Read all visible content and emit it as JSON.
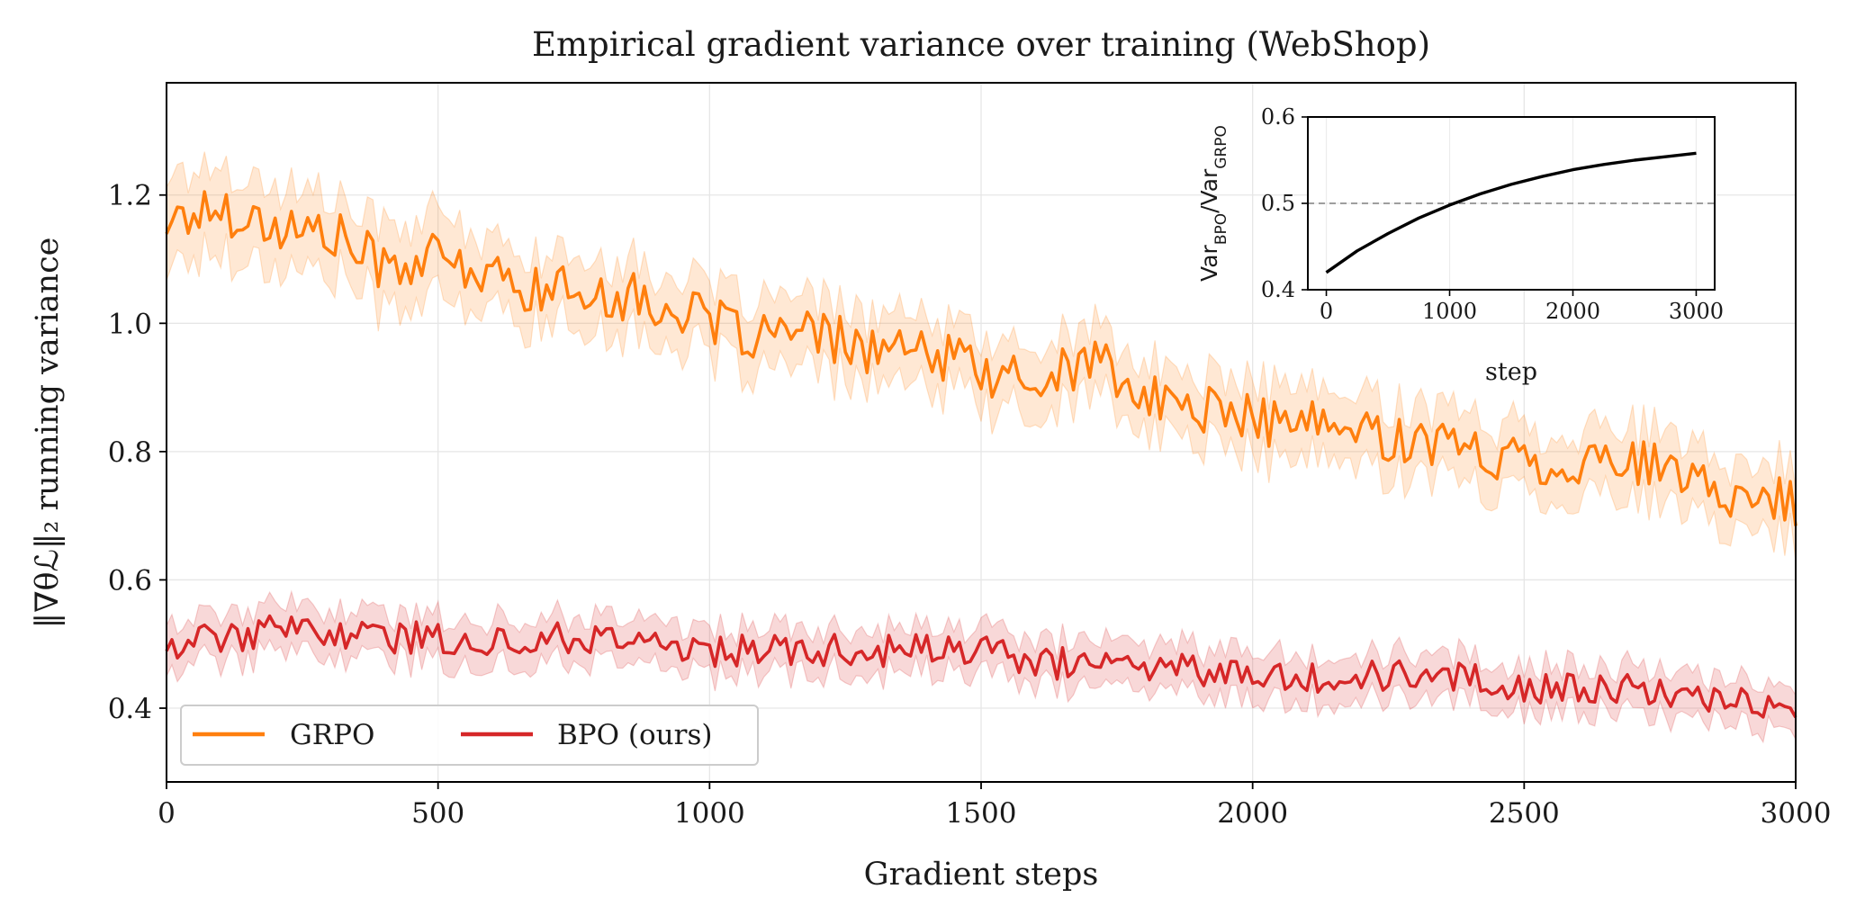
{
  "chart_data": [
    {
      "type": "line",
      "title": "Empirical gradient variance over training (WebShop)",
      "xlabel": "Gradient steps",
      "ylabel": "‖∇θℒ‖₂  running variance",
      "xlim": [
        0,
        3000
      ],
      "ylim": [
        0.285,
        1.375
      ],
      "xticks": [
        0,
        500,
        1000,
        1500,
        2000,
        2500,
        3000
      ],
      "yticks": [
        0.4,
        0.6,
        0.8,
        1.0,
        1.2
      ],
      "xtick_labels": [
        "0",
        "500",
        "1000",
        "1500",
        "2000",
        "2500",
        "3000"
      ],
      "ytick_labels": [
        "0.4",
        "0.6",
        "0.8",
        "1.0",
        "1.2"
      ],
      "grid": true,
      "legend_position": "lower-left",
      "shaded_band": "±1 standard deviation",
      "series": [
        {
          "name": "GRPO",
          "color": "#ff7f0e",
          "x": [
            0,
            100,
            200,
            300,
            400,
            500,
            600,
            700,
            800,
            900,
            1000,
            1100,
            1200,
            1300,
            1400,
            1500,
            1600,
            1700,
            1800,
            1900,
            2000,
            2100,
            2200,
            2300,
            2400,
            2500,
            2600,
            2700,
            2800,
            2900,
            3000
          ],
          "values": [
            1.16,
            1.18,
            1.15,
            1.14,
            1.09,
            1.1,
            1.07,
            1.05,
            1.05,
            1.03,
            1.0,
            0.98,
            0.98,
            0.96,
            0.95,
            0.93,
            0.9,
            0.95,
            0.88,
            0.87,
            0.85,
            0.84,
            0.83,
            0.82,
            0.8,
            0.79,
            0.78,
            0.79,
            0.75,
            0.73,
            0.72
          ],
          "band": [
            0.08,
            0.08,
            0.07,
            0.07,
            0.07,
            0.07,
            0.06,
            0.06,
            0.06,
            0.06,
            0.06,
            0.06,
            0.06,
            0.06,
            0.06,
            0.06,
            0.06,
            0.06,
            0.06,
            0.06,
            0.06,
            0.06,
            0.06,
            0.06,
            0.06,
            0.06,
            0.06,
            0.06,
            0.06,
            0.06,
            0.06
          ],
          "noise": 0.04
        },
        {
          "name": "BPO (ours)",
          "color": "#d62728",
          "x": [
            0,
            100,
            200,
            300,
            400,
            500,
            600,
            700,
            800,
            900,
            1000,
            1100,
            1200,
            1300,
            1400,
            1500,
            1600,
            1700,
            1800,
            1900,
            2000,
            2100,
            2200,
            2300,
            2400,
            2500,
            2600,
            2700,
            2800,
            2900,
            3000
          ],
          "values": [
            0.5,
            0.51,
            0.52,
            0.52,
            0.51,
            0.51,
            0.5,
            0.51,
            0.51,
            0.5,
            0.49,
            0.49,
            0.49,
            0.49,
            0.49,
            0.49,
            0.47,
            0.47,
            0.47,
            0.46,
            0.46,
            0.45,
            0.45,
            0.45,
            0.45,
            0.43,
            0.43,
            0.43,
            0.41,
            0.41,
            0.41
          ],
          "band": [
            0.04,
            0.04,
            0.04,
            0.04,
            0.04,
            0.04,
            0.04,
            0.04,
            0.04,
            0.04,
            0.04,
            0.04,
            0.04,
            0.04,
            0.04,
            0.04,
            0.04,
            0.04,
            0.04,
            0.04,
            0.04,
            0.04,
            0.04,
            0.04,
            0.04,
            0.04,
            0.04,
            0.04,
            0.04,
            0.04,
            0.04
          ],
          "noise": 0.025
        }
      ]
    },
    {
      "type": "line",
      "title": "",
      "xlabel": "step",
      "ylabel": "Var_BPO / Var_GRPO",
      "ylabel_parts": {
        "a": "Var",
        "a_sub": "BPO",
        "sep": "/Var",
        "b_sub": "GRPO"
      },
      "xlim": [
        -150,
        3150
      ],
      "ylim": [
        0.4,
        0.6
      ],
      "xticks": [
        0,
        1000,
        2000,
        3000
      ],
      "yticks": [
        0.4,
        0.5,
        0.6
      ],
      "xtick_labels": [
        "0",
        "1000",
        "2000",
        "3000"
      ],
      "ytick_labels": [
        "0.4",
        "0.5",
        "0.6"
      ],
      "grid": true,
      "reference_line": 0.5,
      "series": [
        {
          "color": "#000000",
          "x": [
            0,
            250,
            500,
            750,
            1000,
            1250,
            1500,
            1750,
            2000,
            2250,
            2500,
            2750,
            3000
          ],
          "values": [
            0.42,
            0.445,
            0.465,
            0.483,
            0.498,
            0.511,
            0.522,
            0.531,
            0.539,
            0.545,
            0.55,
            0.554,
            0.558
          ]
        }
      ]
    }
  ]
}
